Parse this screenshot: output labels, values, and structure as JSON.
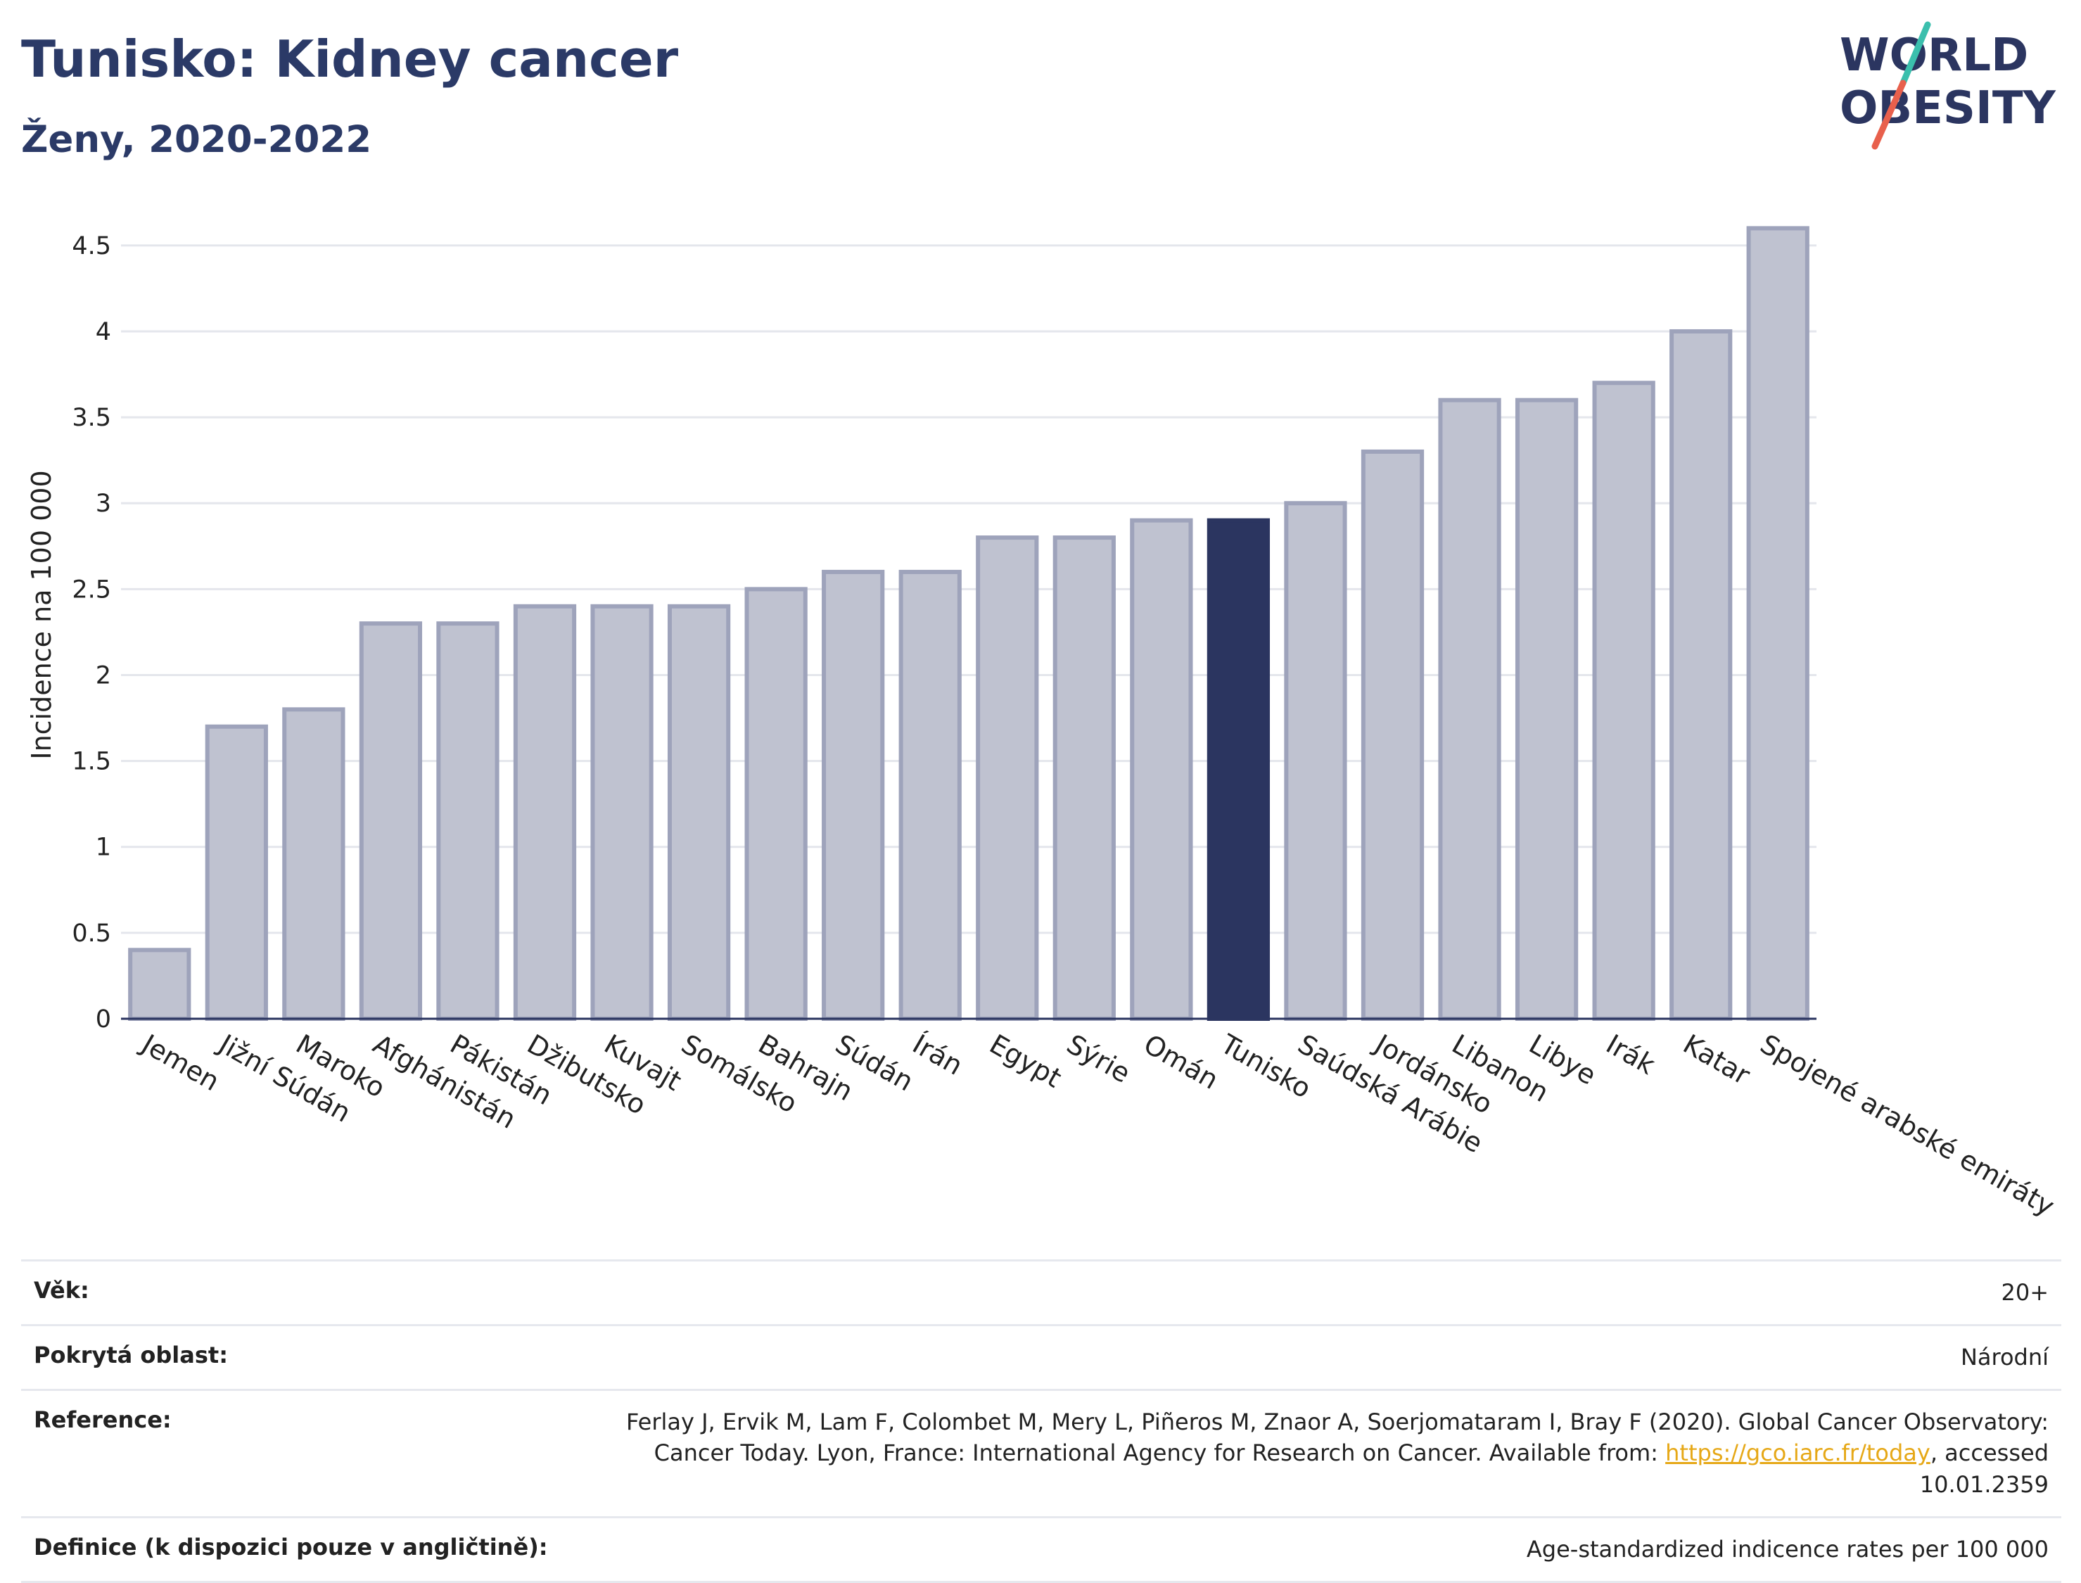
{
  "header": {
    "title": "Tunisko: Kidney cancer",
    "subtitle": "Ženy, 2020-2022"
  },
  "logo": {
    "line1": "WORLD",
    "line2": "OBESITY",
    "accent_colors": [
      "#3bbfad",
      "#e8604c"
    ]
  },
  "colors": {
    "bar": "#bfc2d0",
    "bar_border": "#9ea3bb",
    "highlight": "#2b3560",
    "grid": "#e4e6ec"
  },
  "chart_data": {
    "type": "bar",
    "title": "Tunisko: Kidney cancer",
    "subtitle": "Ženy, 2020-2022",
    "ylabel": "Incidence na 100 000",
    "xlabel": "",
    "ylim": [
      0,
      4.7
    ],
    "yticks": [
      0,
      0.5,
      1,
      1.5,
      2,
      2.5,
      3,
      3.5,
      4,
      4.5
    ],
    "ytick_labels": [
      "0",
      "0.5",
      "1",
      "1.5",
      "2",
      "2.5",
      "3",
      "3.5",
      "4",
      "4.5"
    ],
    "grid": true,
    "highlight": "Tunisko",
    "categories": [
      "Jemen",
      "Jižní Súdán",
      "Maroko",
      "Afghánistán",
      "Pákistán",
      "Džibutsko",
      "Kuvajt",
      "Somálsko",
      "Bahrajn",
      "Súdán",
      "Írán",
      "Egypt",
      "Sýrie",
      "Omán",
      "Tunisko",
      "Saúdská Arábie",
      "Jordánsko",
      "Libanon",
      "Libye",
      "Irák",
      "Katar",
      "Spojené arabské emiráty"
    ],
    "values": [
      0.4,
      1.7,
      1.8,
      2.3,
      2.3,
      2.4,
      2.4,
      2.4,
      2.5,
      2.6,
      2.6,
      2.8,
      2.8,
      2.9,
      2.9,
      3.0,
      3.3,
      3.6,
      3.6,
      3.7,
      4.0,
      4.6
    ]
  },
  "info": [
    {
      "label": "Věk:",
      "value": "20+"
    },
    {
      "label": "Pokrytá oblast:",
      "value": "Národní"
    },
    {
      "label": "Reference:",
      "value_before": "Ferlay J, Ervik M, Lam F, Colombet M, Mery L, Piñeros M, Znaor A, Soerjomataram I, Bray F (2020). Global Cancer Observatory: Cancer Today. Lyon, France: International Agency for Research on Cancer. Available from: ",
      "link": "https://gco.iarc.fr/today",
      "value_after": ", accessed 10.01.2359"
    },
    {
      "label": "Definice (k dispozici pouze v angličtině):",
      "value": "Age-standardized indicence rates per 100 000"
    }
  ]
}
